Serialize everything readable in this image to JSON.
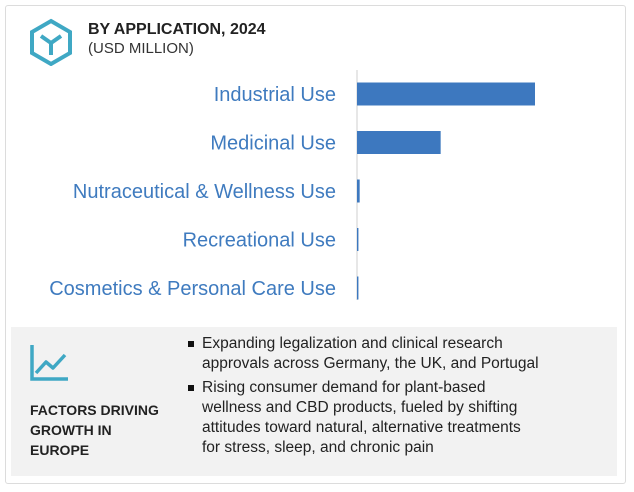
{
  "header": {
    "title": "BY APPLICATION, 2024",
    "subtitle": "(USD MILLION)"
  },
  "colors": {
    "bar": "#3d78bf",
    "label": "#3f7bbf",
    "icon_teal": "#3fa8c4"
  },
  "chart_data": {
    "type": "bar",
    "orientation": "horizontal",
    "categories": [
      "Industrial Use",
      "Medicinal Use",
      "Nutraceutical & Wellness Use",
      "Recreational Use",
      "Cosmetics & Personal Care Use"
    ],
    "values": [
      100,
      47,
      1.5,
      0.8,
      0.8
    ],
    "title": "BY APPLICATION, 2024",
    "subtitle": "(USD MILLION)",
    "xlabel": "",
    "ylabel": "",
    "value_labels": false,
    "grid": false,
    "legend": "none"
  },
  "factors": {
    "icon": "trend-chart-icon",
    "title_lines": [
      "FACTORS DRIVING",
      "GROWTH IN",
      "EUROPE"
    ],
    "bullets": [
      "Expanding legalization and clinical research\napprovals across Germany, the UK, and Portugal",
      "Rising consumer demand for plant-based\nwellness and CBD products, fueled by shifting\nattitudes toward natural, alternative treatments\nfor stress, sleep, and chronic pain"
    ]
  }
}
